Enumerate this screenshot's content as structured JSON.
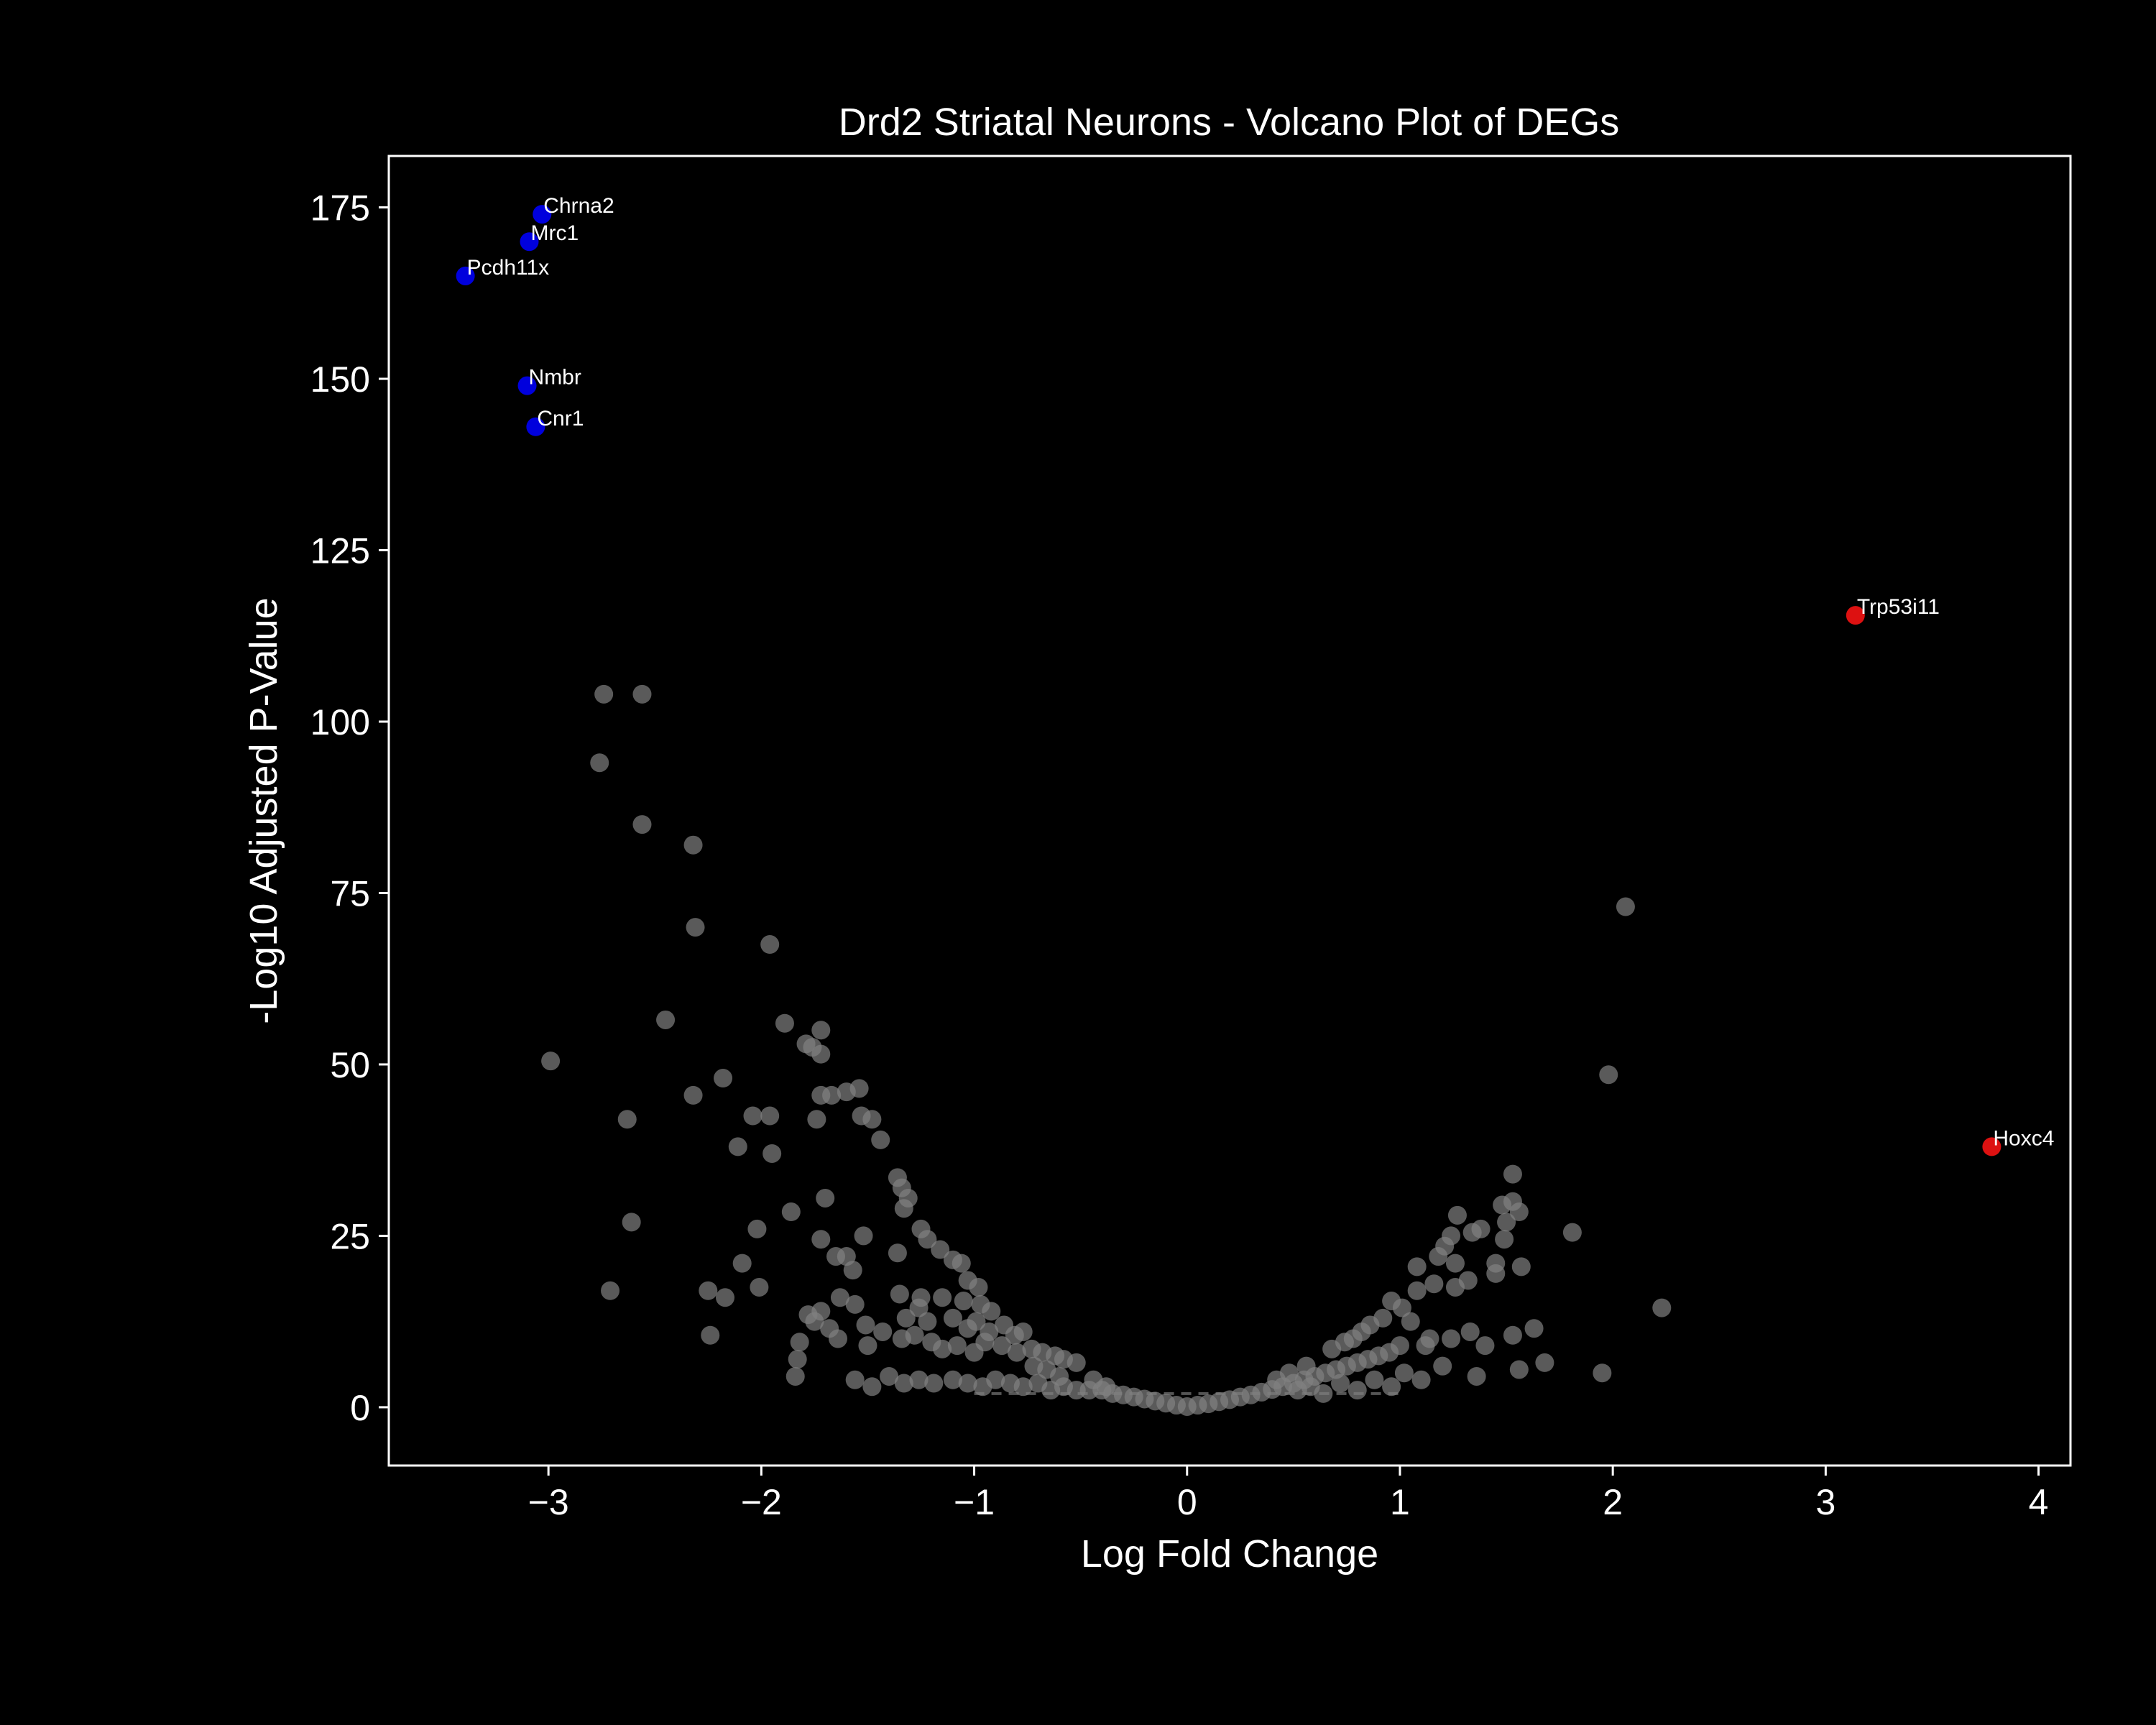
{
  "chart_data": {
    "type": "scatter",
    "title": "Drd2 Striatal Neurons - Volcano Plot of DEGs",
    "xlabel": "Log Fold Change",
    "ylabel": "-Log10 Adjusted P-Value",
    "xlim": [
      -3.75,
      4.15
    ],
    "ylim": [
      -8.5,
      182.5
    ],
    "x_ticks": [
      -3,
      -2,
      -1,
      0,
      1,
      2,
      3,
      4
    ],
    "x_tick_labels": [
      "−3",
      "−2",
      "−1",
      "0",
      "1",
      "2",
      "3",
      "4"
    ],
    "y_ticks": [
      0,
      25,
      50,
      75,
      100,
      125,
      150,
      175
    ],
    "y_tick_labels": [
      "0",
      "25",
      "50",
      "75",
      "100",
      "125",
      "150",
      "175"
    ],
    "threshold_line_y": 2,
    "colors": {
      "background": "#000000",
      "axes": "#ffffff",
      "not_significant": "#808080",
      "down": "#0000dd",
      "up": "#dd1111",
      "threshold": "#555555"
    },
    "highlighted": [
      {
        "gene": "Chrna2",
        "x": -3.03,
        "y": 174,
        "direction": "down"
      },
      {
        "gene": "Mrc1",
        "x": -3.09,
        "y": 170,
        "direction": "down"
      },
      {
        "gene": "Pcdh11x",
        "x": -3.39,
        "y": 165,
        "direction": "down"
      },
      {
        "gene": "Nmbr",
        "x": -3.1,
        "y": 149,
        "direction": "down"
      },
      {
        "gene": "Cnr1",
        "x": -3.06,
        "y": 143,
        "direction": "down"
      },
      {
        "gene": "Trp53i11",
        "x": 3.14,
        "y": 115.5,
        "direction": "up"
      },
      {
        "gene": "Hoxc4",
        "x": 3.78,
        "y": 38,
        "direction": "up"
      }
    ],
    "background_points": [
      [
        -2.74,
        104
      ],
      [
        -2.56,
        104
      ],
      [
        -2.76,
        94
      ],
      [
        -2.56,
        85
      ],
      [
        -2.32,
        82
      ],
      [
        -2.31,
        70
      ],
      [
        -1.96,
        67.5
      ],
      [
        -2.99,
        50.5
      ],
      [
        -2.45,
        56.5
      ],
      [
        -1.89,
        56
      ],
      [
        -1.72,
        55
      ],
      [
        -1.79,
        53
      ],
      [
        -1.76,
        52.5
      ],
      [
        -1.72,
        51.5
      ],
      [
        -2.18,
        48
      ],
      [
        -2.32,
        45.5
      ],
      [
        -1.72,
        45.5
      ],
      [
        -1.67,
        45.5
      ],
      [
        -1.6,
        46
      ],
      [
        -1.54,
        46.5
      ],
      [
        -2.63,
        42
      ],
      [
        -2.04,
        42.5
      ],
      [
        -1.96,
        42.5
      ],
      [
        -1.74,
        42
      ],
      [
        -1.53,
        42.5
      ],
      [
        -1.48,
        42
      ],
      [
        -2.11,
        38
      ],
      [
        -1.95,
        37
      ],
      [
        -1.44,
        39
      ],
      [
        -1.36,
        33.5
      ],
      [
        -1.34,
        32
      ],
      [
        -1.31,
        30.5
      ],
      [
        -1.33,
        29
      ],
      [
        -1.7,
        30.5
      ],
      [
        -1.86,
        28.5
      ],
      [
        -2.61,
        27
      ],
      [
        -2.02,
        26
      ],
      [
        -1.52,
        25
      ],
      [
        -1.25,
        26
      ],
      [
        -1.22,
        24.5
      ],
      [
        -1.16,
        23
      ],
      [
        -1.72,
        24.5
      ],
      [
        -1.65,
        22
      ],
      [
        -1.6,
        22
      ],
      [
        -1.36,
        22.5
      ],
      [
        -1.1,
        21.5
      ],
      [
        -1.06,
        21
      ],
      [
        -2.09,
        21
      ],
      [
        -1.57,
        20
      ],
      [
        -1.03,
        18.5
      ],
      [
        -0.98,
        17.5
      ],
      [
        -2.71,
        17
      ],
      [
        -2.25,
        17
      ],
      [
        -2.01,
        17.5
      ],
      [
        -2.17,
        16
      ],
      [
        -1.63,
        16
      ],
      [
        -1.56,
        15
      ],
      [
        -1.35,
        16.5
      ],
      [
        -1.25,
        16
      ],
      [
        -1.15,
        16
      ],
      [
        -1.05,
        15.5
      ],
      [
        -0.97,
        15
      ],
      [
        -0.92,
        14
      ],
      [
        -1.72,
        14
      ],
      [
        -1.32,
        13
      ],
      [
        -1.26,
        14.5
      ],
      [
        -1.22,
        12.5
      ],
      [
        -1.1,
        13
      ],
      [
        -1.03,
        11.5
      ],
      [
        -0.99,
        12.5
      ],
      [
        -0.93,
        11
      ],
      [
        -0.86,
        12
      ],
      [
        -0.81,
        10.5
      ],
      [
        -0.77,
        11
      ],
      [
        -1.78,
        13.5
      ],
      [
        -1.75,
        12.5
      ],
      [
        -1.68,
        11.5
      ],
      [
        -1.51,
        12
      ],
      [
        -1.43,
        11
      ],
      [
        -1.34,
        10
      ],
      [
        -1.28,
        10.5
      ],
      [
        -1.2,
        9.5
      ],
      [
        -1.15,
        8.5
      ],
      [
        -1.08,
        9
      ],
      [
        -1.0,
        8
      ],
      [
        -0.95,
        9.5
      ],
      [
        -0.87,
        9
      ],
      [
        -0.8,
        8
      ],
      [
        -0.73,
        8.5
      ],
      [
        -0.68,
        8
      ],
      [
        -0.62,
        7.5
      ],
      [
        -0.58,
        7
      ],
      [
        -0.52,
        6.5
      ],
      [
        -2.24,
        10.5
      ],
      [
        -1.82,
        9.5
      ],
      [
        -1.64,
        10
      ],
      [
        -1.5,
        9
      ],
      [
        -1.83,
        7
      ],
      [
        -1.84,
        4.5
      ],
      [
        -1.56,
        4
      ],
      [
        -1.48,
        3
      ],
      [
        -1.4,
        4.5
      ],
      [
        -1.33,
        3.5
      ],
      [
        -1.26,
        4
      ],
      [
        -1.19,
        3.5
      ],
      [
        -1.1,
        4
      ],
      [
        -1.03,
        3.5
      ],
      [
        -0.96,
        3
      ],
      [
        -0.9,
        4
      ],
      [
        -0.83,
        3.5
      ],
      [
        -0.77,
        3
      ],
      [
        -0.7,
        3.5
      ],
      [
        -0.64,
        2.5
      ],
      [
        -0.58,
        3
      ],
      [
        -0.52,
        2.5
      ],
      [
        -0.46,
        2.5
      ],
      [
        -0.4,
        2.5
      ],
      [
        -0.35,
        2
      ],
      [
        -0.3,
        1.8
      ],
      [
        -0.25,
        1.5
      ],
      [
        -0.2,
        1.2
      ],
      [
        -0.15,
        0.9
      ],
      [
        -0.1,
        0.6
      ],
      [
        -0.05,
        0.3
      ],
      [
        0.0,
        0.1
      ],
      [
        0.05,
        0.3
      ],
      [
        0.1,
        0.5
      ],
      [
        0.15,
        0.8
      ],
      [
        0.2,
        1.1
      ],
      [
        0.25,
        1.5
      ],
      [
        0.3,
        1.8
      ],
      [
        0.35,
        2.2
      ],
      [
        0.4,
        2.6
      ],
      [
        0.45,
        3
      ],
      [
        0.5,
        3.5
      ],
      [
        0.55,
        4
      ],
      [
        0.6,
        4.5
      ],
      [
        0.65,
        5
      ],
      [
        0.7,
        5.5
      ],
      [
        0.75,
        6
      ],
      [
        0.8,
        6.5
      ],
      [
        0.85,
        7
      ],
      [
        0.9,
        7.5
      ],
      [
        0.95,
        8
      ],
      [
        1.0,
        9
      ],
      [
        0.68,
        8.5
      ],
      [
        0.74,
        9.5
      ],
      [
        0.78,
        10
      ],
      [
        0.82,
        11
      ],
      [
        0.86,
        12
      ],
      [
        0.92,
        13
      ],
      [
        0.96,
        15.5
      ],
      [
        1.01,
        14.5
      ],
      [
        1.05,
        12.5
      ],
      [
        1.08,
        17
      ],
      [
        1.12,
        9
      ],
      [
        1.14,
        10
      ],
      [
        1.08,
        20.5
      ],
      [
        1.16,
        18
      ],
      [
        1.18,
        22
      ],
      [
        1.21,
        23.5
      ],
      [
        1.24,
        25
      ],
      [
        1.26,
        21
      ],
      [
        1.26,
        17.5
      ],
      [
        1.27,
        28
      ],
      [
        1.32,
        18.5
      ],
      [
        1.34,
        25.5
      ],
      [
        1.38,
        26
      ],
      [
        1.4,
        9
      ],
      [
        1.45,
        21
      ],
      [
        1.45,
        19.5
      ],
      [
        1.48,
        29.5
      ],
      [
        1.49,
        24.5
      ],
      [
        1.5,
        27
      ],
      [
        1.53,
        30
      ],
      [
        1.53,
        34
      ],
      [
        1.56,
        28.5
      ],
      [
        1.57,
        20.5
      ],
      [
        1.53,
        10.5
      ],
      [
        1.56,
        5.5
      ],
      [
        1.63,
        11.5
      ],
      [
        1.68,
        6.5
      ],
      [
        1.81,
        25.5
      ],
      [
        1.95,
        5
      ],
      [
        1.98,
        48.5
      ],
      [
        2.06,
        73
      ],
      [
        2.23,
        14.5
      ],
      [
        1.24,
        10
      ],
      [
        1.33,
        11
      ],
      [
        1.36,
        4.5
      ],
      [
        1.2,
        6
      ],
      [
        1.1,
        4
      ],
      [
        1.02,
        5
      ],
      [
        0.96,
        3
      ],
      [
        0.88,
        4
      ],
      [
        0.8,
        2.5
      ],
      [
        0.72,
        3.5
      ],
      [
        0.64,
        2
      ],
      [
        0.58,
        3
      ],
      [
        0.52,
        2.5
      ],
      [
        -0.6,
        4.5
      ],
      [
        -0.66,
        5.5
      ],
      [
        -0.72,
        6
      ],
      [
        -0.44,
        4
      ],
      [
        -0.38,
        3
      ],
      [
        0.42,
        4
      ],
      [
        0.48,
        5
      ],
      [
        0.56,
        6
      ]
    ]
  }
}
